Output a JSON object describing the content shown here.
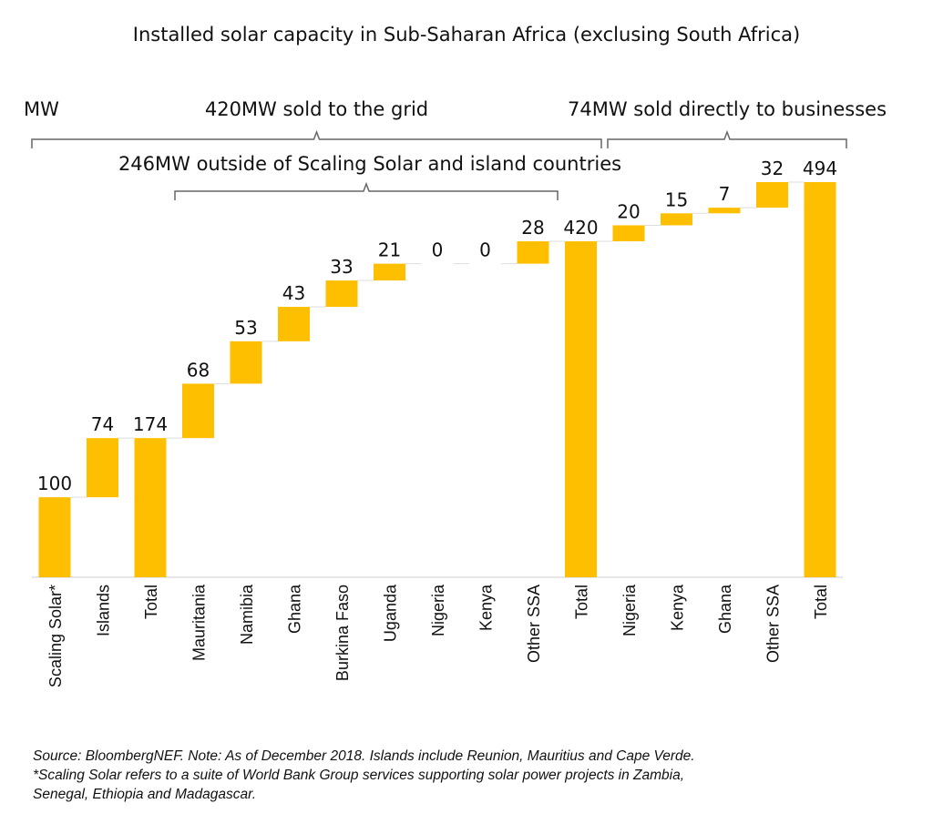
{
  "chart_data": {
    "type": "waterfall",
    "title": "Installed solar capacity in Sub-Saharan Africa (exclusing South Africa)",
    "ylabel": "MW",
    "ylim": [
      0,
      494
    ],
    "grid": false,
    "bar_color": "#FDBF00",
    "categories": [
      "Scaling Solar*",
      "Islands",
      "Total",
      "Mauritania",
      "Namibia",
      "Ghana",
      "Burkina Faso",
      "Uganda",
      "Nigeria",
      "Kenya",
      "Other SSA",
      "Total",
      "Nigeria",
      "Kenya",
      "Ghana",
      "Other SSA",
      "Total"
    ],
    "values": [
      100,
      74,
      174,
      68,
      53,
      43,
      33,
      21,
      0,
      0,
      28,
      420,
      20,
      15,
      7,
      32,
      494
    ],
    "is_total": [
      false,
      false,
      true,
      false,
      false,
      false,
      false,
      false,
      false,
      false,
      false,
      true,
      false,
      false,
      false,
      false,
      true
    ],
    "annotations": [
      {
        "text": "420MW sold to the grid",
        "from": "Scaling Solar*",
        "to": "Total (420)"
      },
      {
        "text": "246MW outside of Scaling Solar and island countries",
        "from": "Mauritania",
        "to": "Other SSA"
      },
      {
        "text": "74MW sold directly to businesses",
        "from": "Nigeria",
        "to": "Total (494)"
      }
    ]
  },
  "footnote": {
    "line1": "Source: BloombergNEF. Note: As of December 2018. Islands include Reunion, Mauritius and Cape Verde.",
    "line2": "*Scaling Solar refers to a suite of World Bank Group services supporting solar power projects in Zambia,",
    "line3": "Senegal, Ethiopia and Madagascar."
  }
}
